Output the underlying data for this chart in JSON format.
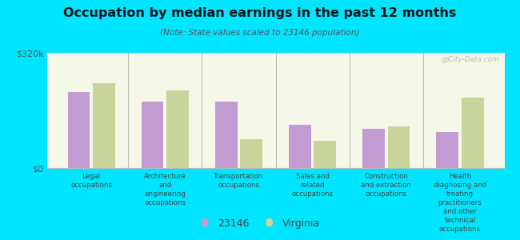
{
  "title": "Occupation by median earnings in the past 12 months",
  "subtitle": "(Note: State values scaled to 23146 population)",
  "background_color": "#00e5ff",
  "plot_bg_top": "#e8f0c8",
  "plot_bg_bottom": "#f5f8e8",
  "categories": [
    "Legal\noccupations",
    "Architecture\nand\nengineering\noccupations",
    "Transportation\noccupations",
    "Sales and\nrelated\noccupations",
    "Construction\nand extraction\noccupations",
    "Health\ndiagnosing and\ntreating\npractitioners\nand other\ntechnical\noccupations"
  ],
  "values_23146": [
    210000,
    185000,
    185000,
    120000,
    110000,
    100000
  ],
  "values_virginia": [
    235000,
    215000,
    80000,
    75000,
    115000,
    195000
  ],
  "color_23146": "#c39bd3",
  "color_virginia": "#c8d49a",
  "ylim": [
    0,
    320000
  ],
  "yticks": [
    0,
    320000
  ],
  "ytick_labels": [
    "$0",
    "$320k"
  ],
  "legend_label_23146": "23146",
  "legend_label_virginia": "Virginia",
  "watermark": "@City-Data.com"
}
